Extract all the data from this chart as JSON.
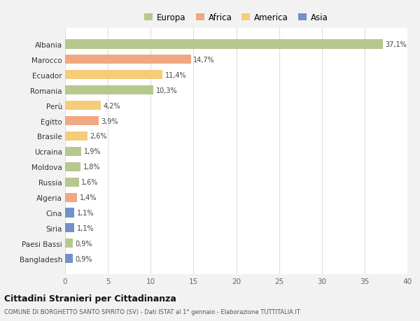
{
  "countries": [
    "Albania",
    "Marocco",
    "Ecuador",
    "Romania",
    "Perù",
    "Egitto",
    "Brasile",
    "Ucraina",
    "Moldova",
    "Russia",
    "Algeria",
    "Cina",
    "Siria",
    "Paesi Bassi",
    "Bangladesh"
  ],
  "values": [
    37.1,
    14.7,
    11.4,
    10.3,
    4.2,
    3.9,
    2.6,
    1.9,
    1.8,
    1.6,
    1.4,
    1.1,
    1.1,
    0.9,
    0.9
  ],
  "labels": [
    "37,1%",
    "14,7%",
    "11,4%",
    "10,3%",
    "4,2%",
    "3,9%",
    "2,6%",
    "1,9%",
    "1,8%",
    "1,6%",
    "1,4%",
    "1,1%",
    "1,1%",
    "0,9%",
    "0,9%"
  ],
  "colors": [
    "#b5c98e",
    "#f0a882",
    "#f5cc7a",
    "#b5c98e",
    "#f5cc7a",
    "#f0a882",
    "#f5cc7a",
    "#b5c98e",
    "#b5c98e",
    "#b5c98e",
    "#f0a882",
    "#7191c8",
    "#7191c8",
    "#b5c98e",
    "#7191c8"
  ],
  "legend_labels": [
    "Europa",
    "Africa",
    "America",
    "Asia"
  ],
  "legend_colors": [
    "#b5c98e",
    "#f0a882",
    "#f5cc7a",
    "#7191c8"
  ],
  "title": "Cittadini Stranieri per Cittadinanza",
  "subtitle": "COMUNE DI BORGHETTO SANTO SPIRITO (SV) - Dati ISTAT al 1° gennaio - Elaborazione TUTTITALIA.IT",
  "xlim": [
    0,
    40
  ],
  "xticks": [
    0,
    5,
    10,
    15,
    20,
    25,
    30,
    35,
    40
  ],
  "background_color": "#f2f2f2",
  "plot_background": "#ffffff",
  "grid_color": "#dddddd",
  "bar_height": 0.6
}
